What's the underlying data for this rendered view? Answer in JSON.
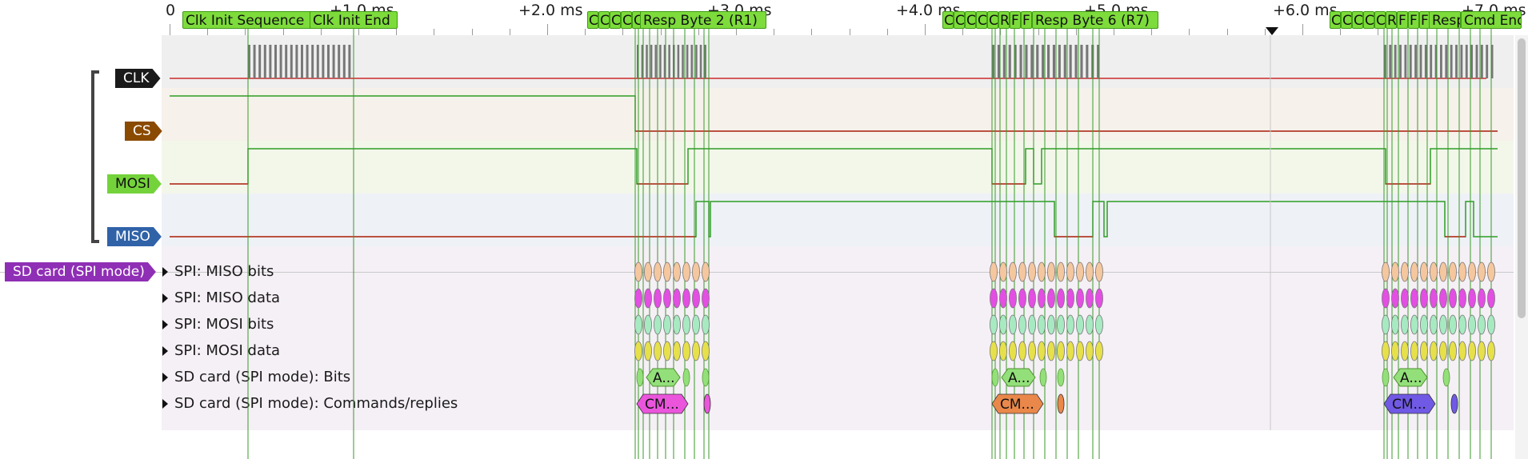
{
  "ruler": {
    "ticks": [
      "0",
      "+1.0 ms",
      "+2.0 ms",
      "+3.0 ms",
      "+4.0 ms",
      "+5.0 ms",
      "+6.0 ms",
      "+7.0 ms"
    ]
  },
  "flags": {
    "clk_init_sequence": "Clk Init Sequence",
    "clk_init_end": "Clk Init End",
    "group1_short": "C",
    "resp_byte_2": "Resp Byte 2 (R1)",
    "group2_short": "C",
    "group2_r": "R",
    "group2_f": "F",
    "resp_byte_6": "Resp Byte 6 (R7)",
    "group3_short": "C",
    "group3_r": "R",
    "group3_f": "F",
    "group3_resp": "Resp",
    "cmd_end": "Cmd End"
  },
  "signals": {
    "clk": "CLK",
    "cs": "CS",
    "mosi": "MOSI",
    "miso": "MISO"
  },
  "decoder": {
    "name": "SD card (SPI mode)",
    "rows": [
      "SPI: MISO bits",
      "SPI: MISO data",
      "SPI: MOSI bits",
      "SPI: MOSI data",
      "SD card (SPI mode): Bits",
      "SD card (SPI mode): Commands/replies"
    ],
    "bits_anno": "A...",
    "cmd_anno": "CM..."
  },
  "colors": {
    "clk_tag": "#1a1a1a",
    "cs_tag": "#8a4a00",
    "mosi_tag": "#74d33b",
    "miso_tag": "#3062a8",
    "decoder_tag": "#8f2fb5",
    "trace_high": "#2d9e25",
    "trace_low": "#cc2a2a",
    "miso_bits": "#f5c79e",
    "miso_data": "#e34ee3",
    "mosi_bits": "#a7eac2",
    "mosi_data": "#e6e04a",
    "sd_bits": "#93e07a",
    "cmd1": "#ea55dc",
    "cmd2": "#e9884a",
    "cmd3": "#7059e4"
  }
}
